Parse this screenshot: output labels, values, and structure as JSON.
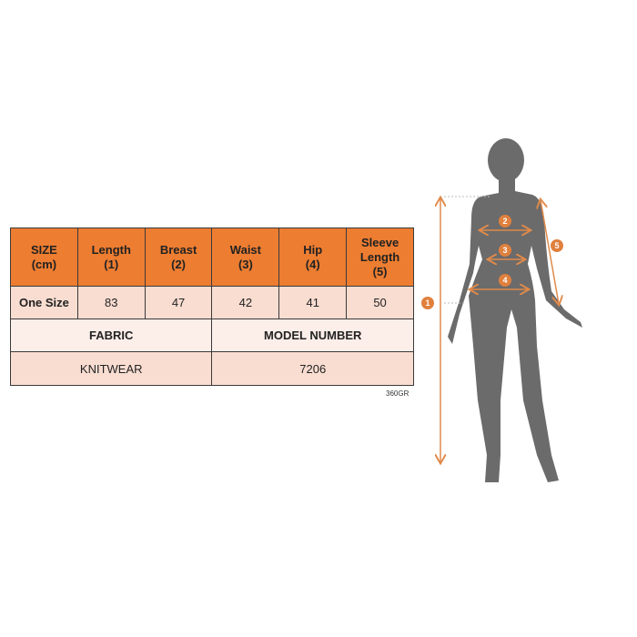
{
  "table": {
    "headers": [
      [
        "SIZE",
        "(cm)"
      ],
      [
        "Length",
        "(1)"
      ],
      [
        "Breast",
        "(2)"
      ],
      [
        "Waist",
        "(3)"
      ],
      [
        "Hip",
        "(4)"
      ],
      [
        "Sleeve",
        "Length",
        "(5)"
      ]
    ],
    "row": [
      "One Size",
      "83",
      "47",
      "42",
      "41",
      "50"
    ],
    "fabric_label": "FABRIC",
    "model_label": "MODEL NUMBER",
    "fabric_value": "KNITWEAR",
    "model_value": "7206"
  },
  "note": "360GR",
  "figure": {
    "markers": [
      "1",
      "2",
      "3",
      "4",
      "5"
    ],
    "colors": {
      "accent": "#ED7D31",
      "silhouette": "#6b6b6b"
    }
  }
}
